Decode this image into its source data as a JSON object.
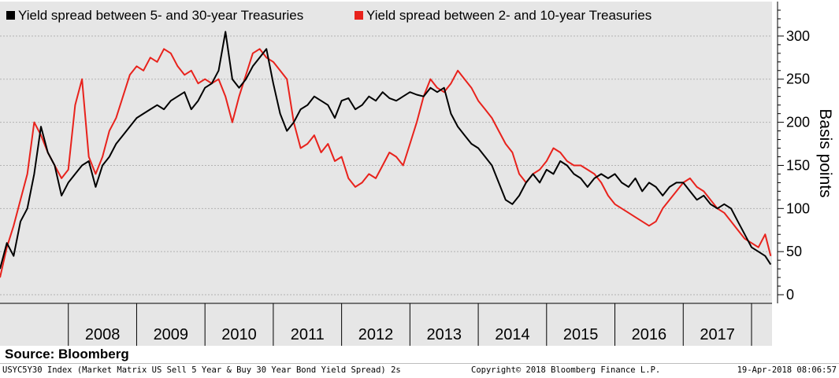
{
  "chart_data": {
    "type": "line",
    "ylabel": "Basis points",
    "yaxis_position": "right",
    "ylim": [
      -10,
      340
    ],
    "yticks": [
      0,
      50,
      100,
      150,
      200,
      250,
      300
    ],
    "xlim": [
      2007.0,
      2018.3
    ],
    "x_tick_labels": [
      "2008",
      "2009",
      "2010",
      "2011",
      "2012",
      "2013",
      "2014",
      "2015",
      "2016",
      "2017"
    ],
    "grid": true,
    "legend_position": "top-left",
    "series": [
      {
        "name": "Yield spread between 5- and 30-year Treasuries",
        "color": "#000000",
        "x": [
          2007.0,
          2007.1,
          2007.2,
          2007.3,
          2007.4,
          2007.5,
          2007.6,
          2007.7,
          2007.8,
          2007.9,
          2008.0,
          2008.1,
          2008.2,
          2008.3,
          2008.4,
          2008.5,
          2008.6,
          2008.7,
          2008.8,
          2008.9,
          2009.0,
          2009.1,
          2009.2,
          2009.3,
          2009.4,
          2009.5,
          2009.6,
          2009.7,
          2009.8,
          2009.9,
          2010.0,
          2010.1,
          2010.2,
          2010.3,
          2010.4,
          2010.5,
          2010.6,
          2010.7,
          2010.8,
          2010.9,
          2011.0,
          2011.1,
          2011.2,
          2011.3,
          2011.4,
          2011.5,
          2011.6,
          2011.7,
          2011.8,
          2011.9,
          2012.0,
          2012.1,
          2012.2,
          2012.3,
          2012.4,
          2012.5,
          2012.6,
          2012.7,
          2012.8,
          2012.9,
          2013.0,
          2013.1,
          2013.2,
          2013.3,
          2013.4,
          2013.5,
          2013.6,
          2013.7,
          2013.8,
          2013.9,
          2014.0,
          2014.1,
          2014.2,
          2014.3,
          2014.4,
          2014.5,
          2014.6,
          2014.7,
          2014.8,
          2014.9,
          2015.0,
          2015.1,
          2015.2,
          2015.3,
          2015.4,
          2015.5,
          2015.6,
          2015.7,
          2015.8,
          2015.9,
          2016.0,
          2016.1,
          2016.2,
          2016.3,
          2016.4,
          2016.5,
          2016.6,
          2016.7,
          2016.8,
          2016.9,
          2017.0,
          2017.1,
          2017.2,
          2017.3,
          2017.4,
          2017.5,
          2017.6,
          2017.7,
          2017.8,
          2017.9,
          2018.0,
          2018.1,
          2018.2,
          2018.28
        ],
        "values": [
          30,
          60,
          45,
          85,
          100,
          140,
          195,
          165,
          150,
          115,
          130,
          140,
          150,
          155,
          125,
          150,
          160,
          175,
          185,
          195,
          205,
          210,
          215,
          220,
          215,
          225,
          230,
          235,
          215,
          225,
          240,
          245,
          260,
          305,
          250,
          240,
          250,
          265,
          275,
          285,
          245,
          210,
          190,
          200,
          215,
          220,
          230,
          225,
          220,
          205,
          225,
          228,
          215,
          220,
          230,
          225,
          235,
          228,
          225,
          230,
          235,
          232,
          230,
          240,
          235,
          240,
          210,
          195,
          185,
          175,
          170,
          160,
          150,
          130,
          110,
          105,
          115,
          130,
          140,
          130,
          145,
          140,
          155,
          150,
          140,
          135,
          125,
          135,
          140,
          135,
          140,
          130,
          125,
          135,
          120,
          130,
          125,
          115,
          125,
          130,
          130,
          120,
          110,
          115,
          105,
          100,
          105,
          100,
          85,
          70,
          55,
          50,
          45,
          35
        ]
      },
      {
        "name": "Yield spread between 2- and 10-year Treasuries",
        "color": "#e8221c",
        "x": [
          2007.0,
          2007.1,
          2007.2,
          2007.3,
          2007.4,
          2007.5,
          2007.6,
          2007.7,
          2007.8,
          2007.9,
          2008.0,
          2008.1,
          2008.2,
          2008.3,
          2008.4,
          2008.5,
          2008.6,
          2008.7,
          2008.8,
          2008.9,
          2009.0,
          2009.1,
          2009.2,
          2009.3,
          2009.4,
          2009.5,
          2009.6,
          2009.7,
          2009.8,
          2009.9,
          2010.0,
          2010.1,
          2010.2,
          2010.3,
          2010.4,
          2010.5,
          2010.6,
          2010.7,
          2010.8,
          2010.9,
          2011.0,
          2011.1,
          2011.2,
          2011.3,
          2011.4,
          2011.5,
          2011.6,
          2011.7,
          2011.8,
          2011.9,
          2012.0,
          2012.1,
          2012.2,
          2012.3,
          2012.4,
          2012.5,
          2012.6,
          2012.7,
          2012.8,
          2012.9,
          2013.0,
          2013.1,
          2013.2,
          2013.3,
          2013.4,
          2013.5,
          2013.6,
          2013.7,
          2013.8,
          2013.9,
          2014.0,
          2014.1,
          2014.2,
          2014.3,
          2014.4,
          2014.5,
          2014.6,
          2014.7,
          2014.8,
          2014.9,
          2015.0,
          2015.1,
          2015.2,
          2015.3,
          2015.4,
          2015.5,
          2015.6,
          2015.7,
          2015.8,
          2015.9,
          2016.0,
          2016.1,
          2016.2,
          2016.3,
          2016.4,
          2016.5,
          2016.6,
          2016.7,
          2016.8,
          2016.9,
          2017.0,
          2017.1,
          2017.2,
          2017.3,
          2017.4,
          2017.5,
          2017.6,
          2017.7,
          2017.8,
          2017.9,
          2018.0,
          2018.1,
          2018.2,
          2018.28
        ],
        "values": [
          20,
          55,
          80,
          110,
          140,
          200,
          185,
          165,
          150,
          135,
          145,
          220,
          250,
          160,
          140,
          160,
          190,
          205,
          230,
          255,
          265,
          260,
          275,
          270,
          285,
          280,
          265,
          255,
          260,
          245,
          250,
          245,
          250,
          230,
          200,
          230,
          255,
          280,
          285,
          275,
          270,
          260,
          250,
          200,
          170,
          175,
          185,
          165,
          175,
          155,
          160,
          135,
          125,
          130,
          140,
          135,
          150,
          165,
          160,
          150,
          175,
          200,
          230,
          250,
          240,
          235,
          245,
          260,
          250,
          240,
          225,
          215,
          205,
          190,
          175,
          165,
          140,
          130,
          140,
          145,
          155,
          170,
          165,
          155,
          150,
          150,
          145,
          140,
          130,
          115,
          105,
          100,
          95,
          90,
          85,
          80,
          85,
          100,
          110,
          120,
          130,
          135,
          125,
          120,
          110,
          100,
          95,
          85,
          75,
          65,
          60,
          55,
          70,
          45
        ]
      }
    ]
  },
  "source_text": "Source: Bloomberg",
  "footer": {
    "index": "USYC5Y30 Index (Market Matrix US Sell 5 Year & Buy 30 Year Bond Yield Spread) 2s",
    "copyright": "Copyright© 2018 Bloomberg Finance L.P.",
    "timestamp": "19-Apr-2018 08:06:57"
  }
}
